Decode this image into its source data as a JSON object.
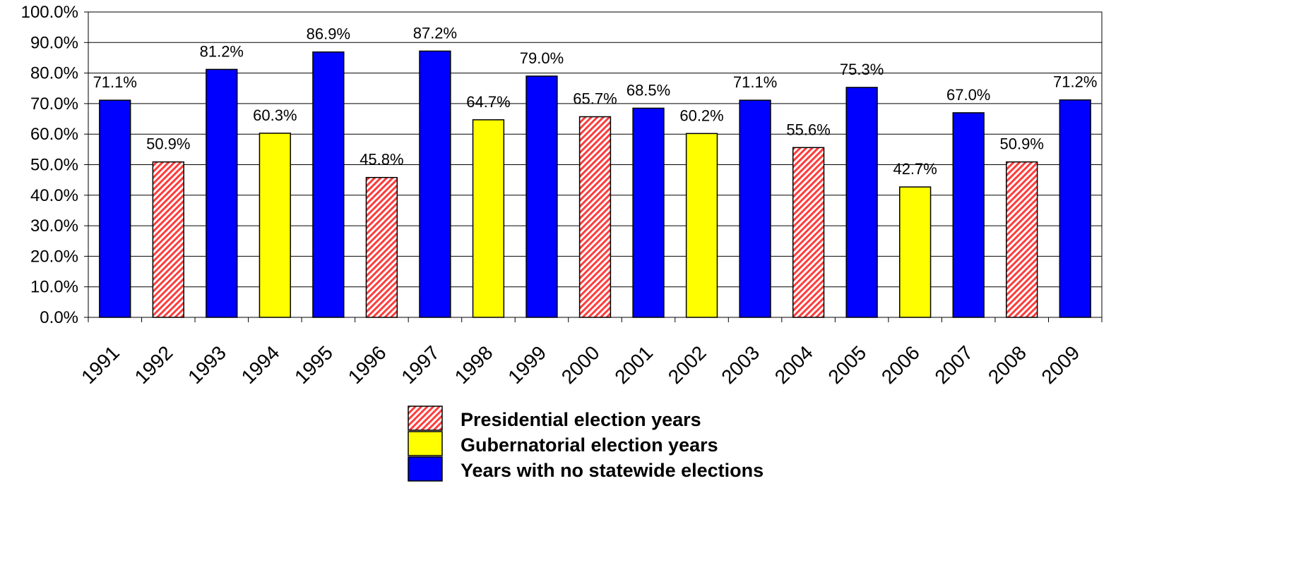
{
  "chart_data": {
    "type": "bar",
    "categories": [
      "1991",
      "1992",
      "1993",
      "1994",
      "1995",
      "1996",
      "1997",
      "1998",
      "1999",
      "2000",
      "2001",
      "2002",
      "2003",
      "2004",
      "2005",
      "2006",
      "2007",
      "2008",
      "2009"
    ],
    "values": [
      71.1,
      50.9,
      81.2,
      60.3,
      86.9,
      45.8,
      87.2,
      64.7,
      79.0,
      65.7,
      68.5,
      60.2,
      71.1,
      55.6,
      75.3,
      42.7,
      67.0,
      50.9,
      71.2
    ],
    "value_labels": [
      "71.1%",
      "50.9%",
      "81.2%",
      "60.3%",
      "86.9%",
      "45.8%",
      "87.2%",
      "64.7%",
      "79.0%",
      "65.7%",
      "68.5%",
      "60.2%",
      "71.1%",
      "55.6%",
      "75.3%",
      "42.7%",
      "67.0%",
      "50.9%",
      "71.2%"
    ],
    "bar_types": [
      "none",
      "presidential",
      "none",
      "gubernatorial",
      "none",
      "presidential",
      "none",
      "gubernatorial",
      "none",
      "presidential",
      "none",
      "gubernatorial",
      "none",
      "presidential",
      "none",
      "gubernatorial",
      "none",
      "presidential",
      "none"
    ],
    "ylim": [
      0,
      100
    ],
    "y_ticks": [
      "0.0%",
      "10.0%",
      "20.0%",
      "30.0%",
      "40.0%",
      "50.0%",
      "60.0%",
      "70.0%",
      "80.0%",
      "90.0%",
      "100.0%"
    ],
    "grid": true,
    "legend_position": "bottom-center",
    "legend": [
      {
        "key": "presidential",
        "label": "Presidential election years",
        "color": "#ff3b3b",
        "pattern": "diagonal-hatch"
      },
      {
        "key": "gubernatorial",
        "label": "Gubernatorial election years",
        "color": "#ffff00"
      },
      {
        "key": "none",
        "label": "Years with no statewide elections",
        "color": "#0000ff"
      }
    ]
  }
}
